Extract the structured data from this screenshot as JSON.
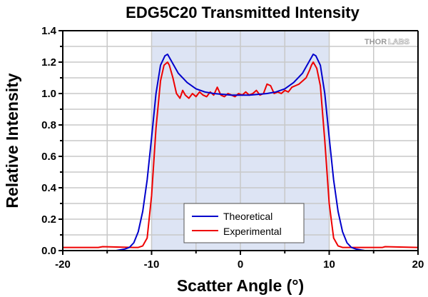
{
  "chart_data": {
    "type": "line",
    "title": "EDG5C20 Transmitted Intensity",
    "xlabel": "Scatter Angle (°)",
    "ylabel": "Relative Intensity",
    "xlim": [
      -20,
      20
    ],
    "ylim": [
      0,
      1.4
    ],
    "xticks": [
      -20,
      -10,
      0,
      10,
      20
    ],
    "xtick_labels": [
      "-20",
      "-10",
      "0",
      "10",
      "20"
    ],
    "yticks": [
      0,
      0.2,
      0.4,
      0.6,
      0.8,
      1.0,
      1.2,
      1.4
    ],
    "ytick_labels": [
      "0.0",
      "0.2",
      "0.4",
      "0.6",
      "0.8",
      "1.0",
      "1.2",
      "1.4"
    ],
    "grid": true,
    "shaded_region": {
      "x": [
        -10,
        10
      ],
      "color": "#dde4f4"
    },
    "legend": {
      "position": "bottom-center",
      "entries": [
        "Theoretical",
        "Experimental"
      ]
    },
    "watermark": {
      "part1": "THOR",
      "part2": "LABS"
    },
    "series": [
      {
        "name": "Theoretical",
        "color": "#0000cc",
        "x": [
          -20,
          -14,
          -13,
          -12.5,
          -12,
          -11.5,
          -11,
          -10.5,
          -10,
          -9.5,
          -9,
          -8.5,
          -8.2,
          -7.5,
          -7,
          -6,
          -5,
          -4,
          -3,
          -2,
          -1,
          0,
          1,
          2,
          3,
          4,
          5,
          6,
          7,
          7.5,
          8.2,
          8.5,
          9,
          9.5,
          10,
          10.5,
          11,
          11.5,
          12,
          12.5,
          13,
          14,
          20
        ],
        "y": [
          0.0,
          0.0,
          0.01,
          0.02,
          0.05,
          0.12,
          0.25,
          0.45,
          0.72,
          1.0,
          1.18,
          1.24,
          1.25,
          1.18,
          1.13,
          1.07,
          1.03,
          1.01,
          1.0,
          0.995,
          0.99,
          0.99,
          0.99,
          0.995,
          1.0,
          1.01,
          1.03,
          1.07,
          1.13,
          1.18,
          1.25,
          1.24,
          1.18,
          1.0,
          0.72,
          0.45,
          0.25,
          0.12,
          0.05,
          0.02,
          0.01,
          0.0,
          0.0
        ]
      },
      {
        "name": "Experimental",
        "color": "#ee0000",
        "x": [
          -20,
          -16,
          -15.5,
          -12,
          -11.5,
          -11,
          -10.5,
          -10,
          -9.5,
          -9,
          -8.6,
          -8.2,
          -8,
          -7.6,
          -7.2,
          -6.8,
          -6.5,
          -6.2,
          -5.8,
          -5.4,
          -5,
          -4.6,
          -4.2,
          -3.8,
          -3.4,
          -3,
          -2.6,
          -2.2,
          -1.8,
          -1.4,
          -1,
          -0.6,
          -0.2,
          0.2,
          0.6,
          1,
          1.4,
          1.8,
          2.2,
          2.6,
          3,
          3.4,
          3.8,
          4.2,
          4.6,
          5,
          5.4,
          5.8,
          6.2,
          6.6,
          7,
          7.4,
          7.8,
          8,
          8.2,
          8.6,
          9,
          9.5,
          10,
          10.5,
          11,
          11.5,
          12,
          13,
          16,
          16.3,
          20
        ],
        "y": [
          0.02,
          0.02,
          0.025,
          0.02,
          0.02,
          0.03,
          0.08,
          0.35,
          0.78,
          1.08,
          1.18,
          1.2,
          1.18,
          1.1,
          1.0,
          0.97,
          1.02,
          0.99,
          0.97,
          1.0,
          0.98,
          1.01,
          0.99,
          0.98,
          1.01,
          0.99,
          1.04,
          0.99,
          0.98,
          1.0,
          0.99,
          0.98,
          1.0,
          0.99,
          1.01,
          0.99,
          1.0,
          1.02,
          0.99,
          1.0,
          1.06,
          1.05,
          1.0,
          1.01,
          1.0,
          1.02,
          1.01,
          1.04,
          1.05,
          1.06,
          1.08,
          1.1,
          1.15,
          1.18,
          1.2,
          1.16,
          1.05,
          0.7,
          0.3,
          0.08,
          0.03,
          0.02,
          0.02,
          0.02,
          0.02,
          0.025,
          0.02
        ]
      }
    ]
  }
}
